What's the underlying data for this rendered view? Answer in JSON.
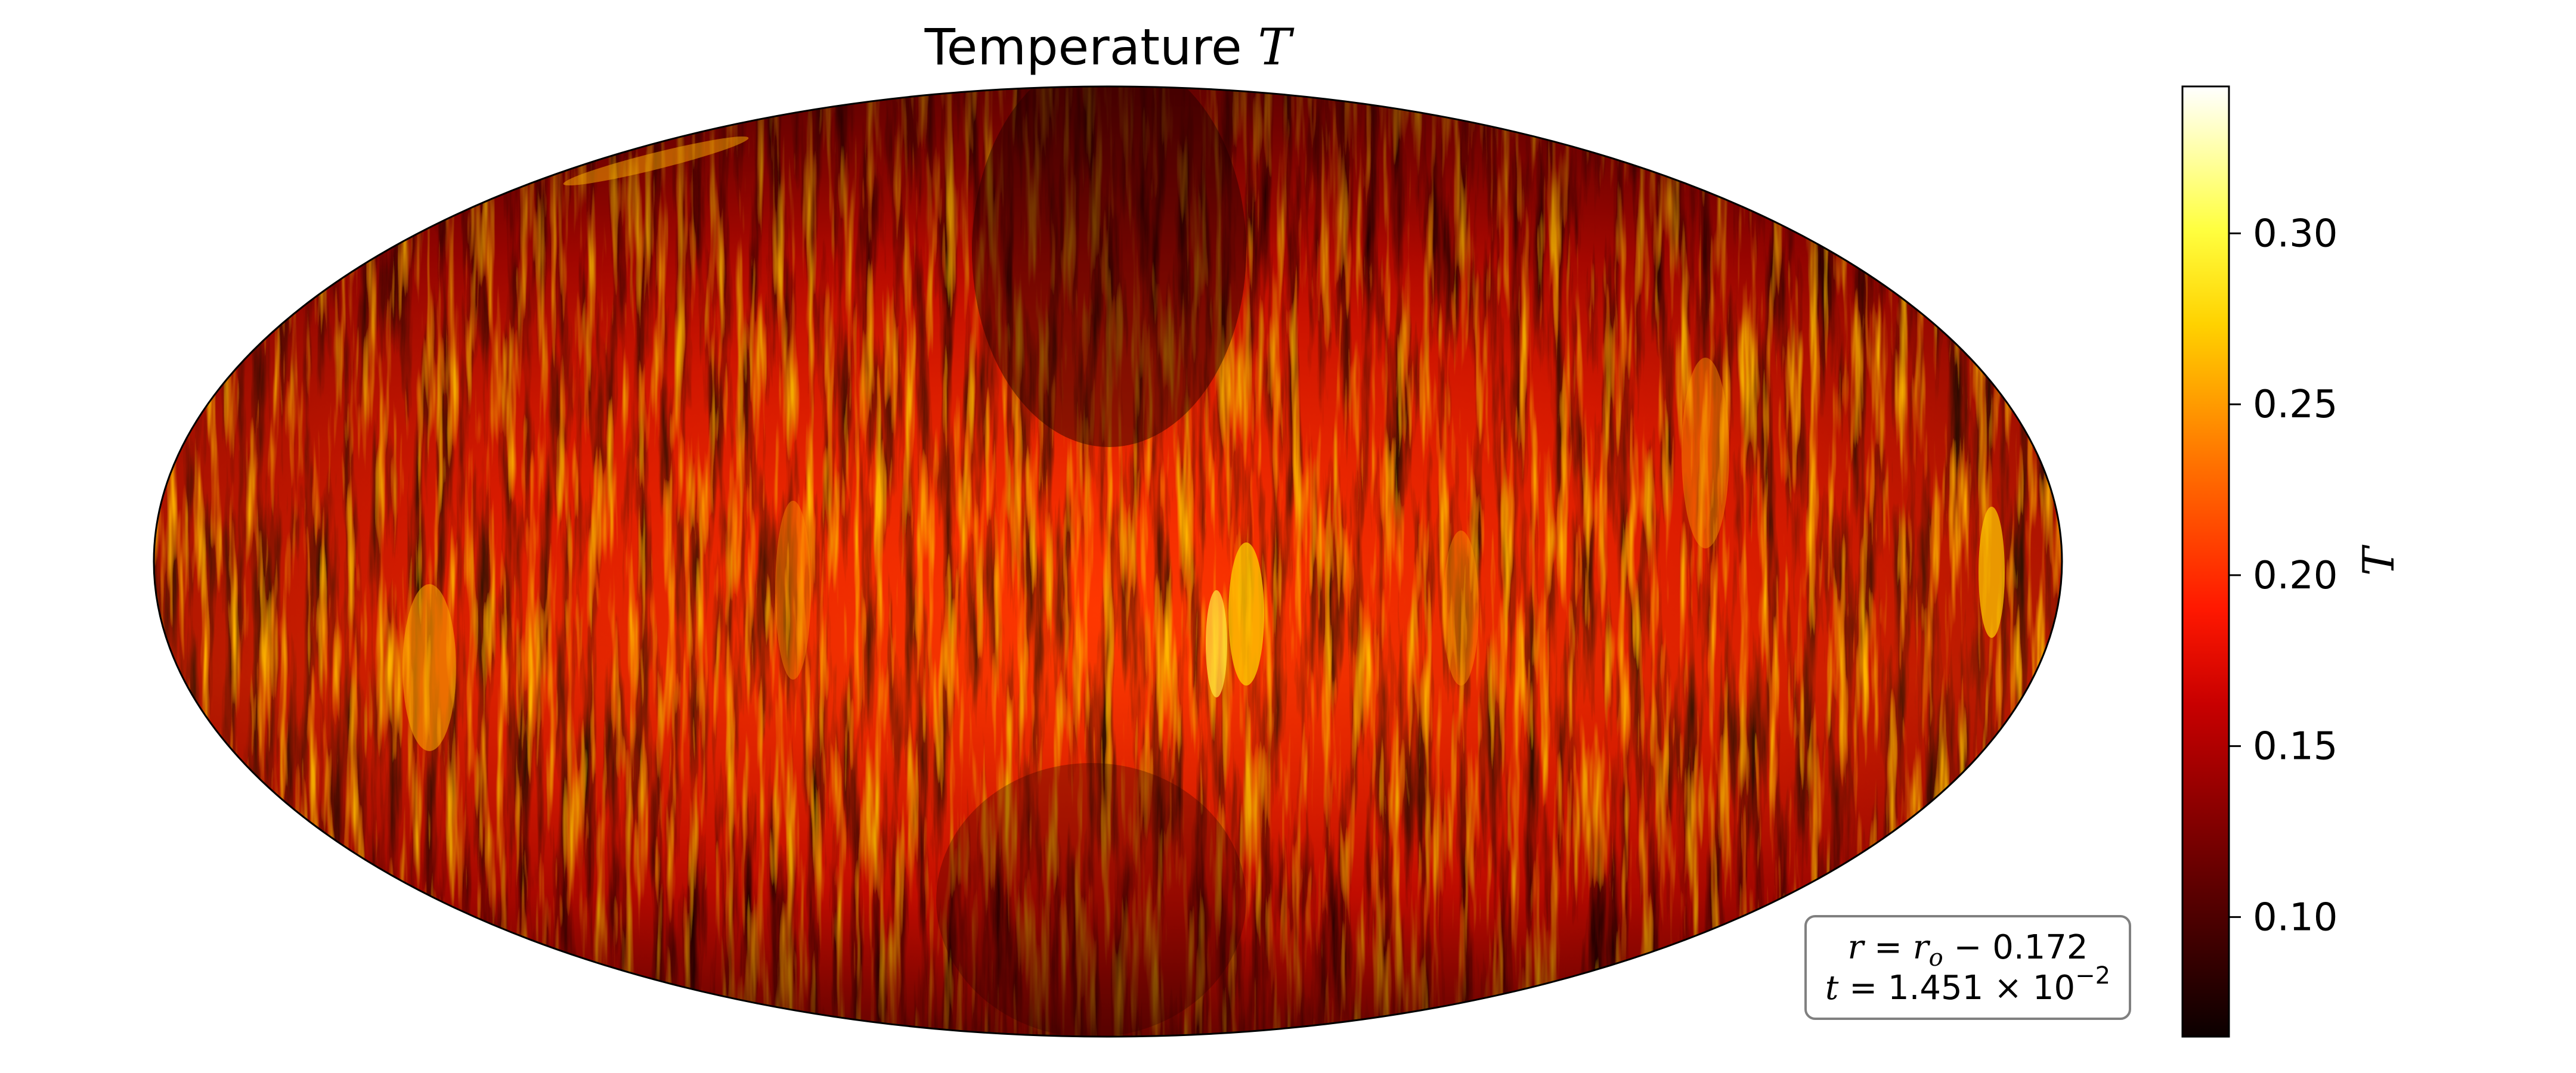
{
  "chart_data": {
    "type": "heatmap",
    "projection": "mollweide",
    "title_text": "Temperature ",
    "title_var": "T",
    "field": "temperature",
    "colormap": "hot",
    "colorbar": {
      "label": "T",
      "vmin": 0.065,
      "vmax": 0.343,
      "ticks": [
        0.1,
        0.15,
        0.2,
        0.25,
        0.3
      ],
      "tick_labels": [
        "0.10",
        "0.15",
        "0.20",
        "0.25",
        "0.30"
      ]
    },
    "annotation": {
      "line1_lhs": "r",
      "line1_rhs_var": "r",
      "line1_rhs_sub": "o",
      "line1_value": "0.172",
      "line2_lhs": "t",
      "line2_mantissa": "1.451",
      "line2_base": "10",
      "line2_exponent": "−2"
    },
    "features": {
      "dominant_structure": "north-south elongated convective plumes",
      "hot_bands": "mid-latitudes and equatorial columns",
      "cool_regions": "polar caps and central-north column"
    }
  }
}
